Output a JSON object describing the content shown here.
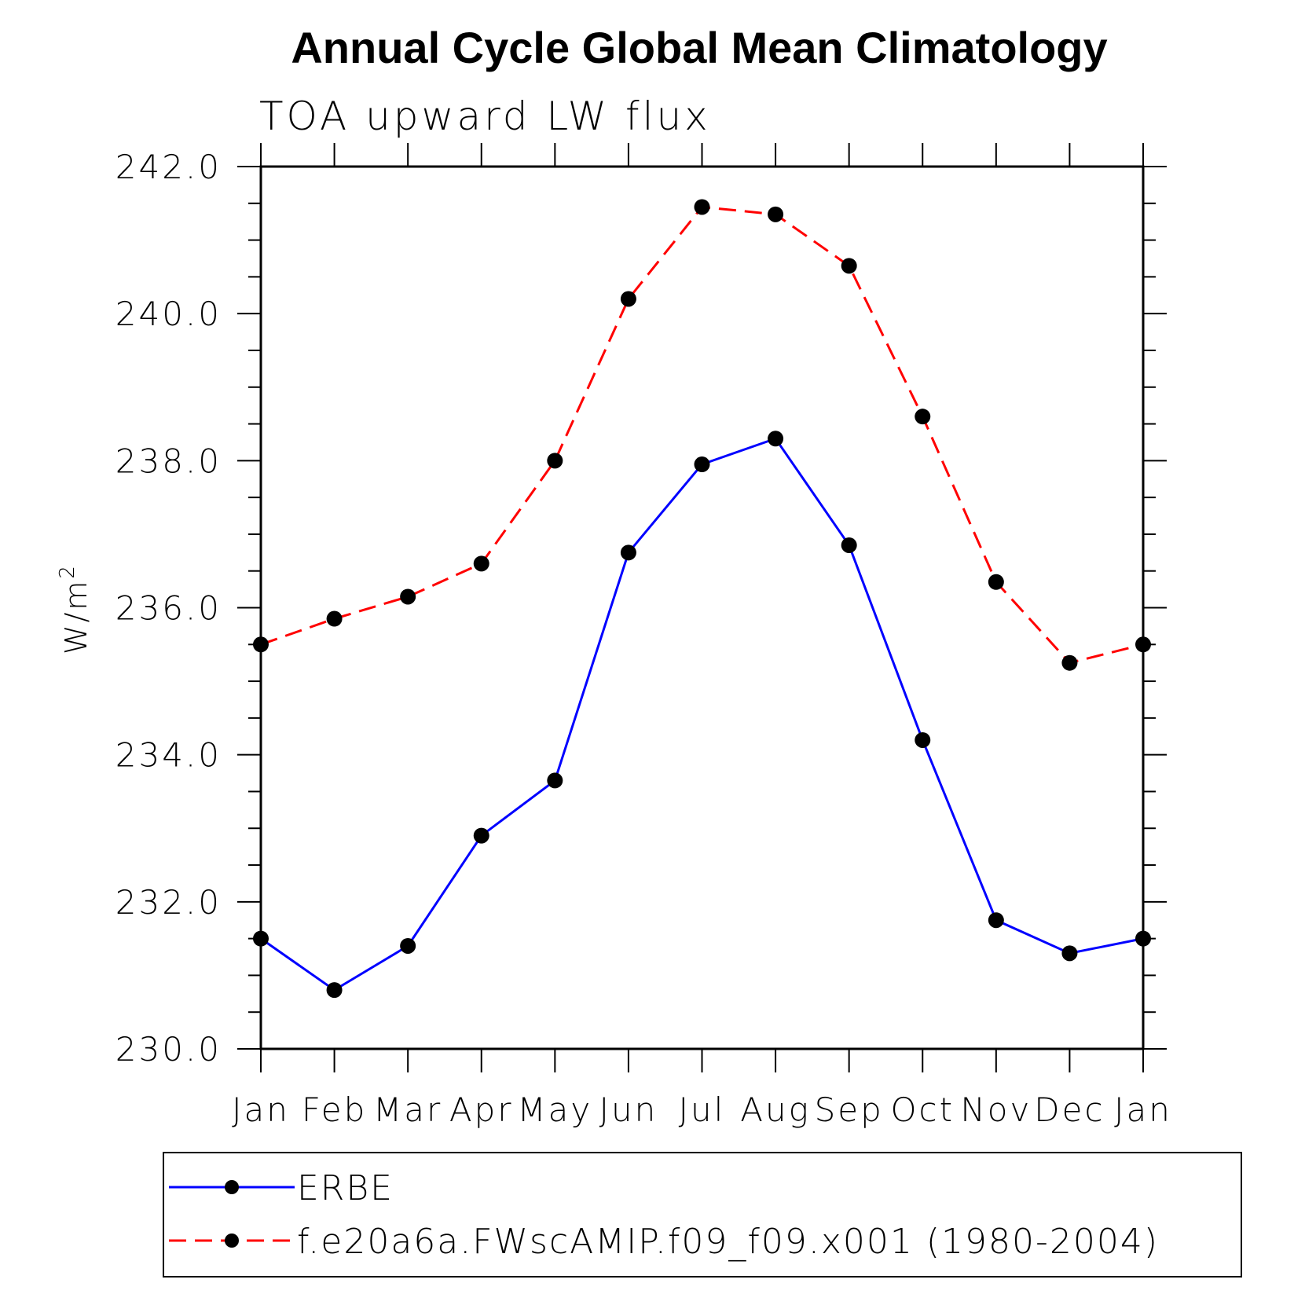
{
  "chart_data": {
    "type": "line",
    "title": "Annual Cycle Global Mean Climatology",
    "subtitle": "TOA upward LW flux",
    "ylabel_base": "W/m",
    "ylabel_sup": "2",
    "xlabel": "",
    "categories": [
      "Jan",
      "Feb",
      "Mar",
      "Apr",
      "May",
      "Jun",
      "Jul",
      "Aug",
      "Sep",
      "Oct",
      "Nov",
      "Dec",
      "Jan"
    ],
    "ylim": [
      230.0,
      242.0
    ],
    "yticks": [
      "230.0",
      "232.0",
      "234.0",
      "236.0",
      "238.0",
      "240.0",
      "242.0"
    ],
    "grid": false,
    "legend_position": "bottom",
    "series": [
      {
        "name": "ERBE",
        "color": "#0000ff",
        "dash": "solid",
        "marker": "filled-circle",
        "values": [
          231.5,
          230.8,
          231.4,
          232.9,
          233.65,
          236.75,
          237.95,
          238.3,
          236.85,
          234.2,
          231.75,
          231.3,
          231.5
        ]
      },
      {
        "name": "f.e20a6a.FWscAMIP.f09_f09.x001 (1980-2004)",
        "color": "#ff0000",
        "dash": "dashed",
        "marker": "filled-circle",
        "values": [
          235.5,
          235.85,
          236.15,
          236.6,
          238.0,
          240.2,
          241.45,
          241.35,
          240.65,
          238.6,
          236.35,
          235.25,
          235.5
        ]
      }
    ]
  }
}
